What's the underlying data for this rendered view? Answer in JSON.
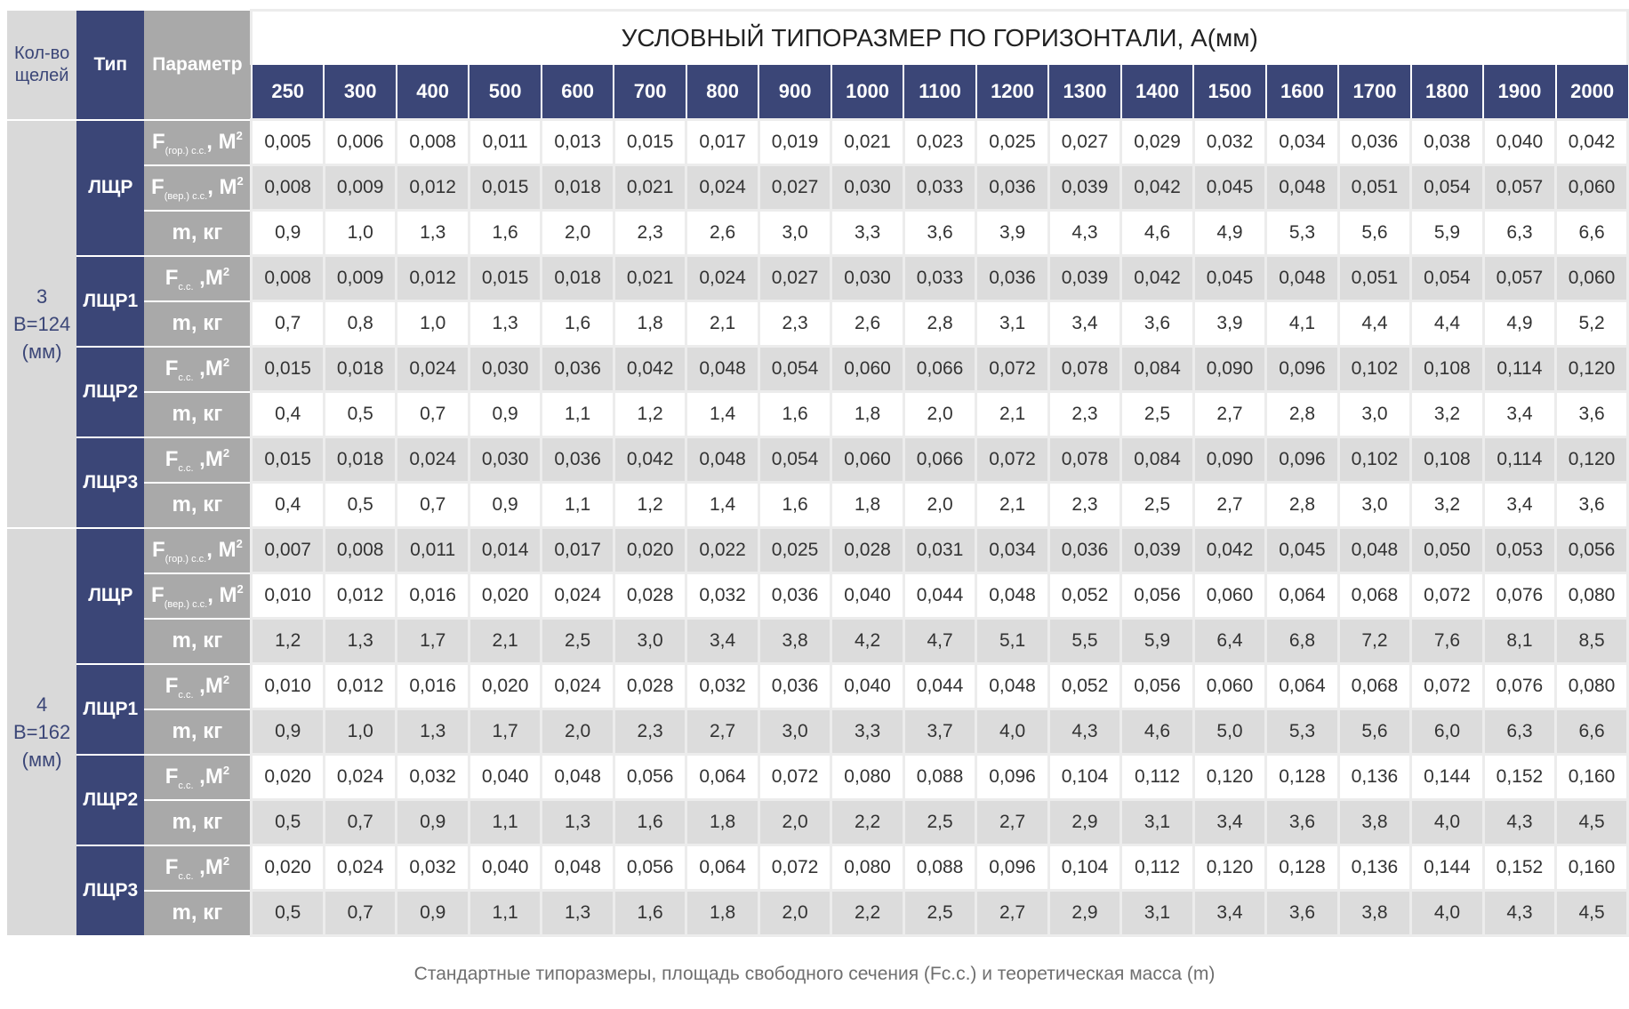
{
  "header": {
    "count_label": "Кол-во щелей",
    "type_label": "Тип",
    "param_label": "Параметр",
    "title": "УСЛОВНЫЙ ТИПОРАЗМЕР ПО ГОРИЗОНТАЛИ, А(мм)",
    "sizes": [
      "250",
      "300",
      "400",
      "500",
      "600",
      "700",
      "800",
      "900",
      "1000",
      "1100",
      "1200",
      "1300",
      "1400",
      "1500",
      "1600",
      "1700",
      "1800",
      "1900",
      "2000"
    ]
  },
  "colors": {
    "navy": "#3b4677",
    "param_gray": "#a9a9a9",
    "row_gray": "#dcdcdc"
  },
  "groups": [
    {
      "count": "3",
      "width": "В=124",
      "unit": "(мм)",
      "types": [
        {
          "name": "ЛЩР",
          "rows": [
            {
              "param": {
                "main": "F",
                "sub": "(гор.) с.с.",
                "unit": ", М",
                "sup": "2"
              },
              "values": [
                "0,005",
                "0,006",
                "0,008",
                "0,011",
                "0,013",
                "0,015",
                "0,017",
                "0,019",
                "0,021",
                "0,023",
                "0,025",
                "0,027",
                "0,029",
                "0,032",
                "0,034",
                "0,036",
                "0,038",
                "0,040",
                "0,042"
              ]
            },
            {
              "param": {
                "main": "F",
                "sub": "(вер.) с.с.",
                "unit": ", М",
                "sup": "2"
              },
              "values": [
                "0,008",
                "0,009",
                "0,012",
                "0,015",
                "0,018",
                "0,021",
                "0,024",
                "0,027",
                "0,030",
                "0,033",
                "0,036",
                "0,039",
                "0,042",
                "0,045",
                "0,048",
                "0,051",
                "0,054",
                "0,057",
                "0,060"
              ]
            },
            {
              "param": {
                "main": "m, кг"
              },
              "values": [
                "0,9",
                "1,0",
                "1,3",
                "1,6",
                "2,0",
                "2,3",
                "2,6",
                "3,0",
                "3,3",
                "3,6",
                "3,9",
                "4,3",
                "4,6",
                "4,9",
                "5,3",
                "5,6",
                "5,9",
                "6,3",
                "6,6"
              ]
            }
          ]
        },
        {
          "name": "ЛЩР1",
          "rows": [
            {
              "param": {
                "main": "F",
                "sub": "с.с.",
                "unit": " ,М",
                "sup": "2"
              },
              "values": [
                "0,008",
                "0,009",
                "0,012",
                "0,015",
                "0,018",
                "0,021",
                "0,024",
                "0,027",
                "0,030",
                "0,033",
                "0,036",
                "0,039",
                "0,042",
                "0,045",
                "0,048",
                "0,051",
                "0,054",
                "0,057",
                "0,060"
              ]
            },
            {
              "param": {
                "main": "m, кг"
              },
              "values": [
                "0,7",
                "0,8",
                "1,0",
                "1,3",
                "1,6",
                "1,8",
                "2,1",
                "2,3",
                "2,6",
                "2,8",
                "3,1",
                "3,4",
                "3,6",
                "3,9",
                "4,1",
                "4,4",
                "4,4",
                "4,9",
                "5,2"
              ]
            }
          ]
        },
        {
          "name": "ЛЩР2",
          "rows": [
            {
              "param": {
                "main": "F",
                "sub": "с.с.",
                "unit": " ,М",
                "sup": "2"
              },
              "values": [
                "0,015",
                "0,018",
                "0,024",
                "0,030",
                "0,036",
                "0,042",
                "0,048",
                "0,054",
                "0,060",
                "0,066",
                "0,072",
                "0,078",
                "0,084",
                "0,090",
                "0,096",
                "0,102",
                "0,108",
                "0,114",
                "0,120"
              ]
            },
            {
              "param": {
                "main": "m, кг"
              },
              "values": [
                "0,4",
                "0,5",
                "0,7",
                "0,9",
                "1,1",
                "1,2",
                "1,4",
                "1,6",
                "1,8",
                "2,0",
                "2,1",
                "2,3",
                "2,5",
                "2,7",
                "2,8",
                "3,0",
                "3,2",
                "3,4",
                "3,6"
              ]
            }
          ]
        },
        {
          "name": "ЛЩР3",
          "rows": [
            {
              "param": {
                "main": "F",
                "sub": "с.с.",
                "unit": " ,М",
                "sup": "2"
              },
              "values": [
                "0,015",
                "0,018",
                "0,024",
                "0,030",
                "0,036",
                "0,042",
                "0,048",
                "0,054",
                "0,060",
                "0,066",
                "0,072",
                "0,078",
                "0,084",
                "0,090",
                "0,096",
                "0,102",
                "0,108",
                "0,114",
                "0,120"
              ]
            },
            {
              "param": {
                "main": "m, кг"
              },
              "values": [
                "0,4",
                "0,5",
                "0,7",
                "0,9",
                "1,1",
                "1,2",
                "1,4",
                "1,6",
                "1,8",
                "2,0",
                "2,1",
                "2,3",
                "2,5",
                "2,7",
                "2,8",
                "3,0",
                "3,2",
                "3,4",
                "3,6"
              ]
            }
          ]
        }
      ]
    },
    {
      "count": "4",
      "width": "В=162",
      "unit": "(мм)",
      "types": [
        {
          "name": "ЛЩР",
          "rows": [
            {
              "param": {
                "main": "F",
                "sub": "(гор.) с.с.",
                "unit": ", М",
                "sup": "2"
              },
              "values": [
                "0,007",
                "0,008",
                "0,011",
                "0,014",
                "0,017",
                "0,020",
                "0,022",
                "0,025",
                "0,028",
                "0,031",
                "0,034",
                "0,036",
                "0,039",
                "0,042",
                "0,045",
                "0,048",
                "0,050",
                "0,053",
                "0,056"
              ]
            },
            {
              "param": {
                "main": "F",
                "sub": "(вер.) с.с.",
                "unit": ", М",
                "sup": "2"
              },
              "values": [
                "0,010",
                "0,012",
                "0,016",
                "0,020",
                "0,024",
                "0,028",
                "0,032",
                "0,036",
                "0,040",
                "0,044",
                "0,048",
                "0,052",
                "0,056",
                "0,060",
                "0,064",
                "0,068",
                "0,072",
                "0,076",
                "0,080"
              ]
            },
            {
              "param": {
                "main": "m, кг"
              },
              "values": [
                "1,2",
                "1,3",
                "1,7",
                "2,1",
                "2,5",
                "3,0",
                "3,4",
                "3,8",
                "4,2",
                "4,7",
                "5,1",
                "5,5",
                "5,9",
                "6,4",
                "6,8",
                "7,2",
                "7,6",
                "8,1",
                "8,5"
              ]
            }
          ]
        },
        {
          "name": "ЛЩР1",
          "rows": [
            {
              "param": {
                "main": "F",
                "sub": "с.с.",
                "unit": " ,М",
                "sup": "2"
              },
              "values": [
                "0,010",
                "0,012",
                "0,016",
                "0,020",
                "0,024",
                "0,028",
                "0,032",
                "0,036",
                "0,040",
                "0,044",
                "0,048",
                "0,052",
                "0,056",
                "0,060",
                "0,064",
                "0,068",
                "0,072",
                "0,076",
                "0,080"
              ]
            },
            {
              "param": {
                "main": "m, кг"
              },
              "values": [
                "0,9",
                "1,0",
                "1,3",
                "1,7",
                "2,0",
                "2,3",
                "2,7",
                "3,0",
                "3,3",
                "3,7",
                "4,0",
                "4,3",
                "4,6",
                "5,0",
                "5,3",
                "5,6",
                "6,0",
                "6,3",
                "6,6"
              ]
            }
          ]
        },
        {
          "name": "ЛЩР2",
          "rows": [
            {
              "param": {
                "main": "F",
                "sub": "с.с.",
                "unit": " ,М",
                "sup": "2"
              },
              "values": [
                "0,020",
                "0,024",
                "0,032",
                "0,040",
                "0,048",
                "0,056",
                "0,064",
                "0,072",
                "0,080",
                "0,088",
                "0,096",
                "0,104",
                "0,112",
                "0,120",
                "0,128",
                "0,136",
                "0,144",
                "0,152",
                "0,160"
              ]
            },
            {
              "param": {
                "main": "m, кг"
              },
              "values": [
                "0,5",
                "0,7",
                "0,9",
                "1,1",
                "1,3",
                "1,6",
                "1,8",
                "2,0",
                "2,2",
                "2,5",
                "2,7",
                "2,9",
                "3,1",
                "3,4",
                "3,6",
                "3,8",
                "4,0",
                "4,3",
                "4,5"
              ]
            }
          ]
        },
        {
          "name": "ЛЩР3",
          "rows": [
            {
              "param": {
                "main": "F",
                "sub": "с.с.",
                "unit": " ,М",
                "sup": "2"
              },
              "values": [
                "0,020",
                "0,024",
                "0,032",
                "0,040",
                "0,048",
                "0,056",
                "0,064",
                "0,072",
                "0,080",
                "0,088",
                "0,096",
                "0,104",
                "0,112",
                "0,120",
                "0,128",
                "0,136",
                "0,144",
                "0,152",
                "0,160"
              ]
            },
            {
              "param": {
                "main": "m, кг"
              },
              "values": [
                "0,5",
                "0,7",
                "0,9",
                "1,1",
                "1,3",
                "1,6",
                "1,8",
                "2,0",
                "2,2",
                "2,5",
                "2,7",
                "2,9",
                "3,1",
                "3,4",
                "3,6",
                "3,8",
                "4,0",
                "4,3",
                "4,5"
              ]
            }
          ]
        }
      ]
    }
  ],
  "caption": "Стандартные типоразмеры, площадь свободного сечения (Fc.c.) и теоретическая масса (m)"
}
